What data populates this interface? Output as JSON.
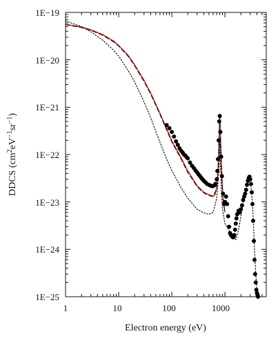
{
  "chart_data": {
    "type": "line",
    "title": "",
    "xlabel": "Electron energy (eV)",
    "ylabel_main": "DDCS (cm",
    "ylabel_sup1": "2",
    "ylabel_mid": "eV",
    "ylabel_sup2": "−1",
    "ylabel_mid2": "sr",
    "ylabel_sup3": "−1",
    "ylabel_end": ")",
    "x_scale": "log",
    "y_scale": "log",
    "xlim": [
      1,
      6000
    ],
    "ylim": [
      1e-25,
      1e-19
    ],
    "x_tick_values": [
      1,
      10,
      100,
      1000
    ],
    "x_tick_labels": [
      "1",
      "10",
      "100",
      "1000"
    ],
    "y_tick_values": [
      1e-25,
      1e-24,
      1e-23,
      1e-22,
      1e-21,
      1e-20,
      1e-19
    ],
    "y_tick_labels": [
      "1E−25",
      "1E−24",
      "1E−23",
      "1E−22",
      "1E−21",
      "1E−20",
      "1E−19"
    ],
    "grid": false,
    "legend": "none",
    "series": [
      {
        "style": "solid",
        "color": "#d42020",
        "x": [
          1,
          2,
          3,
          5,
          8,
          10,
          15,
          20,
          30,
          40,
          60,
          80,
          100,
          150,
          200,
          300,
          400,
          500,
          600,
          650,
          700,
          750,
          780,
          800,
          820,
          850,
          880,
          920,
          1000
        ],
        "y": [
          5.6e-20,
          4.9e-20,
          4.3e-20,
          3.4e-20,
          2.5e-20,
          2e-20,
          1.25e-20,
          7.8e-21,
          3.7e-21,
          2e-21,
          7.4e-22,
          3.5e-22,
          1.95e-22,
          8.5e-23,
          4.5e-23,
          2.2e-23,
          1.6e-23,
          1.42e-23,
          1.32e-23,
          1.42e-23,
          2e-23,
          6e-23,
          2.5e-22,
          6e-22,
          3e-22,
          8e-23,
          3e-23,
          1.2e-23,
          6e-24
        ]
      },
      {
        "style": "dashed",
        "color": "#111111",
        "x": [
          1,
          2,
          3,
          5,
          8,
          10,
          15,
          20,
          30,
          40,
          60,
          80,
          100,
          150,
          200,
          300,
          400,
          500,
          600,
          700,
          750,
          780,
          800,
          820,
          850,
          880,
          920,
          1000
        ],
        "y": [
          5.5e-20,
          4.8e-20,
          4.2e-20,
          3.3e-20,
          2.4e-20,
          1.95e-20,
          1.2e-20,
          7.5e-21,
          3.5e-21,
          1.9e-21,
          7e-22,
          3.3e-22,
          1.85e-22,
          8e-23,
          4.2e-23,
          2.1e-23,
          1.55e-23,
          1.36e-23,
          1.3e-23,
          1.9e-23,
          6e-23,
          2.5e-22,
          6e-22,
          3e-22,
          8e-23,
          3e-23,
          1.2e-23,
          6e-24
        ]
      },
      {
        "style": "dotted",
        "color": "#111111",
        "x": [
          1,
          2,
          3,
          5,
          8,
          10,
          15,
          20,
          30,
          40,
          60,
          80,
          100,
          150,
          200,
          300,
          400,
          500,
          600,
          700,
          780,
          800,
          850,
          900,
          1000,
          1200,
          1400,
          1600,
          1800,
          2000,
          2300,
          2600,
          2800,
          3000,
          3200,
          3400,
          3600,
          3800,
          4000,
          4200
        ],
        "y": [
          6.6e-20,
          5e-20,
          3.9e-20,
          2.6e-20,
          1.6e-20,
          1.2e-20,
          6e-21,
          3.4e-21,
          1.3e-21,
          6e-22,
          1.8e-22,
          8e-23,
          4.6e-23,
          2e-23,
          1.2e-23,
          7e-24,
          5.9e-24,
          5.5e-24,
          6e-24,
          1.2e-23,
          5e-23,
          2e-22,
          2e-23,
          7e-24,
          3.5e-24,
          2.5e-24,
          1.8e-24,
          1.6e-24,
          2.5e-24,
          5e-24,
          1.2e-23,
          2.2e-23,
          2.8e-23,
          2.6e-23,
          1.5e-23,
          5e-24,
          1e-24,
          3e-25,
          1.5e-25,
          1.2e-25
        ]
      },
      {
        "style": "markers",
        "color": "#000000",
        "x": [
          80,
          90,
          100,
          110,
          120,
          130,
          140,
          150,
          160,
          170,
          180,
          190,
          200,
          220,
          240,
          260,
          280,
          300,
          320,
          340,
          360,
          380,
          400,
          430,
          460,
          500,
          540,
          580,
          620,
          660,
          700,
          720,
          740,
          760,
          780,
          800,
          820,
          850,
          880,
          920,
          960,
          1000,
          1050,
          1100,
          1150,
          1200,
          1250,
          1300,
          1350,
          1400,
          1450,
          1500,
          1550,
          1600,
          1650,
          1700,
          1800,
          1900,
          2000,
          2100,
          2200,
          2300,
          2400,
          2500,
          2600,
          2700,
          2800,
          2900,
          3000,
          3100,
          3200,
          3300,
          3400,
          3500,
          3600,
          3700,
          3800,
          3900,
          4000,
          4100,
          4200
        ],
        "y": [
          4.2e-22,
          3.6e-22,
          3e-22,
          2.4e-22,
          1.9e-22,
          1.6e-22,
          1.35e-22,
          1.2e-22,
          1.1e-22,
          1e-22,
          9.5e-23,
          8.8e-23,
          8.3e-23,
          6.8e-23,
          5.8e-23,
          5.2e-23,
          4.6e-23,
          4.2e-23,
          3.8e-23,
          3.5e-23,
          3.2e-23,
          3e-23,
          2.8e-23,
          2.6e-23,
          2.4e-23,
          2.3e-23,
          2.2e-23,
          2.15e-23,
          2.2e-23,
          2.4e-23,
          3e-23,
          4.5e-23,
          8e-23,
          2e-22,
          5e-22,
          6.5e-22,
          3e-22,
          9e-23,
          3.5e-23,
          1.5e-23,
          9e-24,
          1e-23,
          1.3e-23,
          9e-24,
          5e-24,
          3e-24,
          2.2e-24,
          2e-24,
          1.9e-24,
          1.8e-24,
          1.8e-24,
          2e-24,
          2.6e-24,
          3.5e-24,
          4.5e-24,
          5.5e-24,
          6.5e-24,
          6e-24,
          7e-24,
          8.5e-24,
          1.1e-23,
          1.3e-23,
          1.5e-23,
          1.8e-23,
          2.3e-23,
          2.8e-23,
          3.2e-23,
          3.4e-23,
          3e-23,
          2.4e-23,
          1.6e-23,
          9e-24,
          4e-24,
          1.5e-24,
          6e-25,
          3e-25,
          2e-25,
          1.4e-25,
          1.2e-25,
          1.1e-25,
          1e-25
        ]
      }
    ]
  }
}
